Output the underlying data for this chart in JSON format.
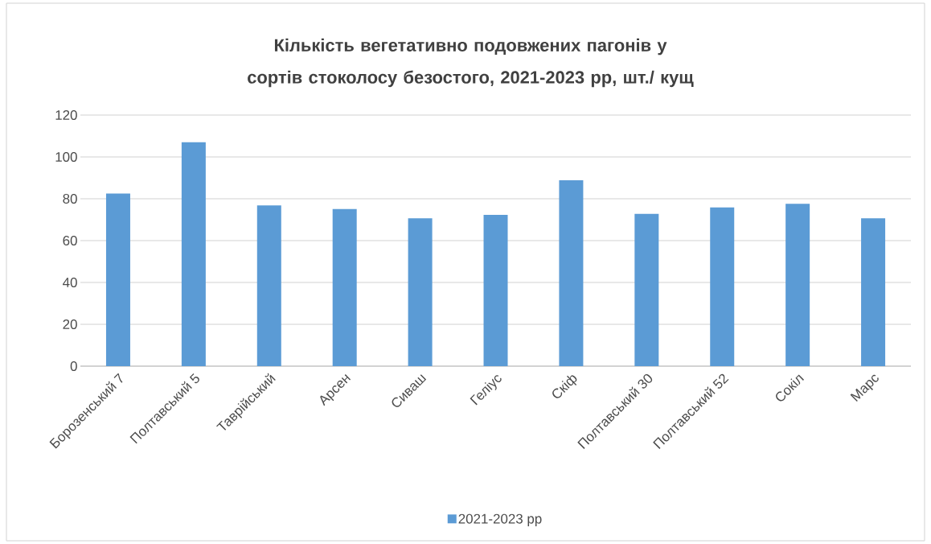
{
  "chart_data": {
    "type": "bar",
    "title": "Кількість вегетативно подовжених пагонів у сортів стоколосу безостого, 2021-2023 рр, шт./ кущ",
    "categories": [
      "Борозенський 7",
      "Полтавський 5",
      "Таврійський",
      "Арсен",
      "Сиваш",
      "Геліус",
      "Скіф",
      "Полтавський 30",
      "Полтавський 52",
      "Сокіл",
      "Марс"
    ],
    "series": [
      {
        "name": "2021-2023 рр",
        "color": "#5b9bd5",
        "values": [
          82.5,
          107,
          76.8,
          75.1,
          70.7,
          72.3,
          88.8,
          72.8,
          75.9,
          77.6,
          70.7
        ]
      }
    ],
    "ylim": [
      0,
      120
    ],
    "yticks": [
      0,
      20,
      40,
      60,
      80,
      100,
      120
    ],
    "grid": "y",
    "legend": "bottom"
  }
}
